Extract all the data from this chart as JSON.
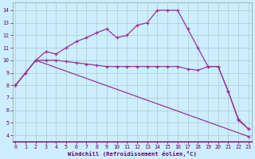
{
  "xlabel": "Windchill (Refroidissement éolien,°C)",
  "bg_color": "#cceeff",
  "line_color": "#993399",
  "grid_color": "#aacccc",
  "x_ticks": [
    0,
    1,
    2,
    3,
    4,
    5,
    6,
    7,
    8,
    9,
    10,
    11,
    12,
    13,
    14,
    15,
    16,
    17,
    18,
    19,
    20,
    21,
    22,
    23
  ],
  "y_ticks": [
    4,
    5,
    6,
    7,
    8,
    9,
    10,
    11,
    12,
    13,
    14
  ],
  "ylim": [
    3.5,
    14.6
  ],
  "xlim": [
    -0.3,
    23.3
  ],
  "curve1_x": [
    0,
    1,
    2,
    3,
    4,
    5,
    6,
    7,
    8,
    9,
    10,
    11,
    12,
    13,
    14,
    15,
    16,
    17,
    18,
    19,
    20,
    21,
    22,
    23
  ],
  "curve1_y": [
    8.0,
    9.0,
    10.0,
    10.7,
    10.5,
    11.0,
    11.5,
    11.8,
    12.2,
    12.5,
    11.8,
    12.0,
    12.8,
    13.0,
    14.0,
    14.0,
    14.0,
    12.5,
    11.0,
    9.5,
    9.5,
    7.5,
    5.2,
    4.5
  ],
  "curve2_x": [
    0,
    1,
    2,
    3,
    4,
    5,
    6,
    7,
    8,
    9,
    10,
    11,
    12,
    13,
    14,
    15,
    16,
    17,
    18,
    19,
    20,
    21,
    22,
    23
  ],
  "curve2_y": [
    8.0,
    9.0,
    10.0,
    10.0,
    10.0,
    9.9,
    9.8,
    9.7,
    9.6,
    9.5,
    9.5,
    9.5,
    9.5,
    9.5,
    9.5,
    9.5,
    9.5,
    9.3,
    9.2,
    9.5,
    9.5,
    7.5,
    5.3,
    4.5
  ],
  "curve3_x": [
    0,
    2,
    23
  ],
  "curve3_y": [
    8.0,
    10.0,
    3.9
  ]
}
